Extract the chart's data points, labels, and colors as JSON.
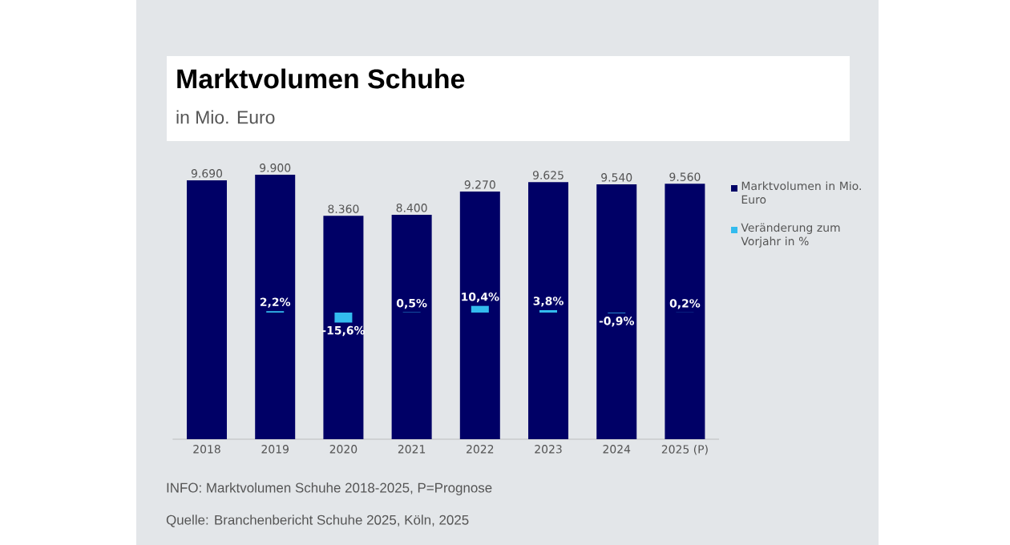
{
  "chart_data": {
    "type": "bar",
    "title": "Marktvolumen Schuhe",
    "subtitle": "in Mio. Euro",
    "categories": [
      "2018",
      "2019",
      "2020",
      "2021",
      "2022",
      "2023",
      "2024",
      "2025 (P)"
    ],
    "series": [
      {
        "name": "Marktvolumen in Mio. Euro",
        "color": "#000066",
        "values": [
          9690,
          9900,
          8360,
          8400,
          9270,
          9625,
          9540,
          9560
        ],
        "value_labels": [
          "9.690",
          "9.900",
          "8.360",
          "8.400",
          "9.270",
          "9.625",
          "9.540",
          "9.560"
        ]
      },
      {
        "name": "Veränderung zum Vorjahr in %",
        "color": "#33bbee",
        "axis": "y2",
        "values": [
          null,
          2.2,
          -15.6,
          0.5,
          10.4,
          3.8,
          -0.9,
          0.2
        ],
        "value_labels": [
          null,
          "2,2%",
          "-15,6%",
          "0,5%",
          "10,4%",
          "3,8%",
          "-0,9%",
          "0,2%"
        ]
      }
    ],
    "ylim": [
      0,
      9900
    ],
    "tick_labels": "x",
    "legend": "right",
    "annotations": [
      "INFO: Marktvolumen Schuhe 2018-2025, P=Prognose",
      "Quelle: Branchenbericht Schuhe 2025, Köln, 2025"
    ]
  }
}
